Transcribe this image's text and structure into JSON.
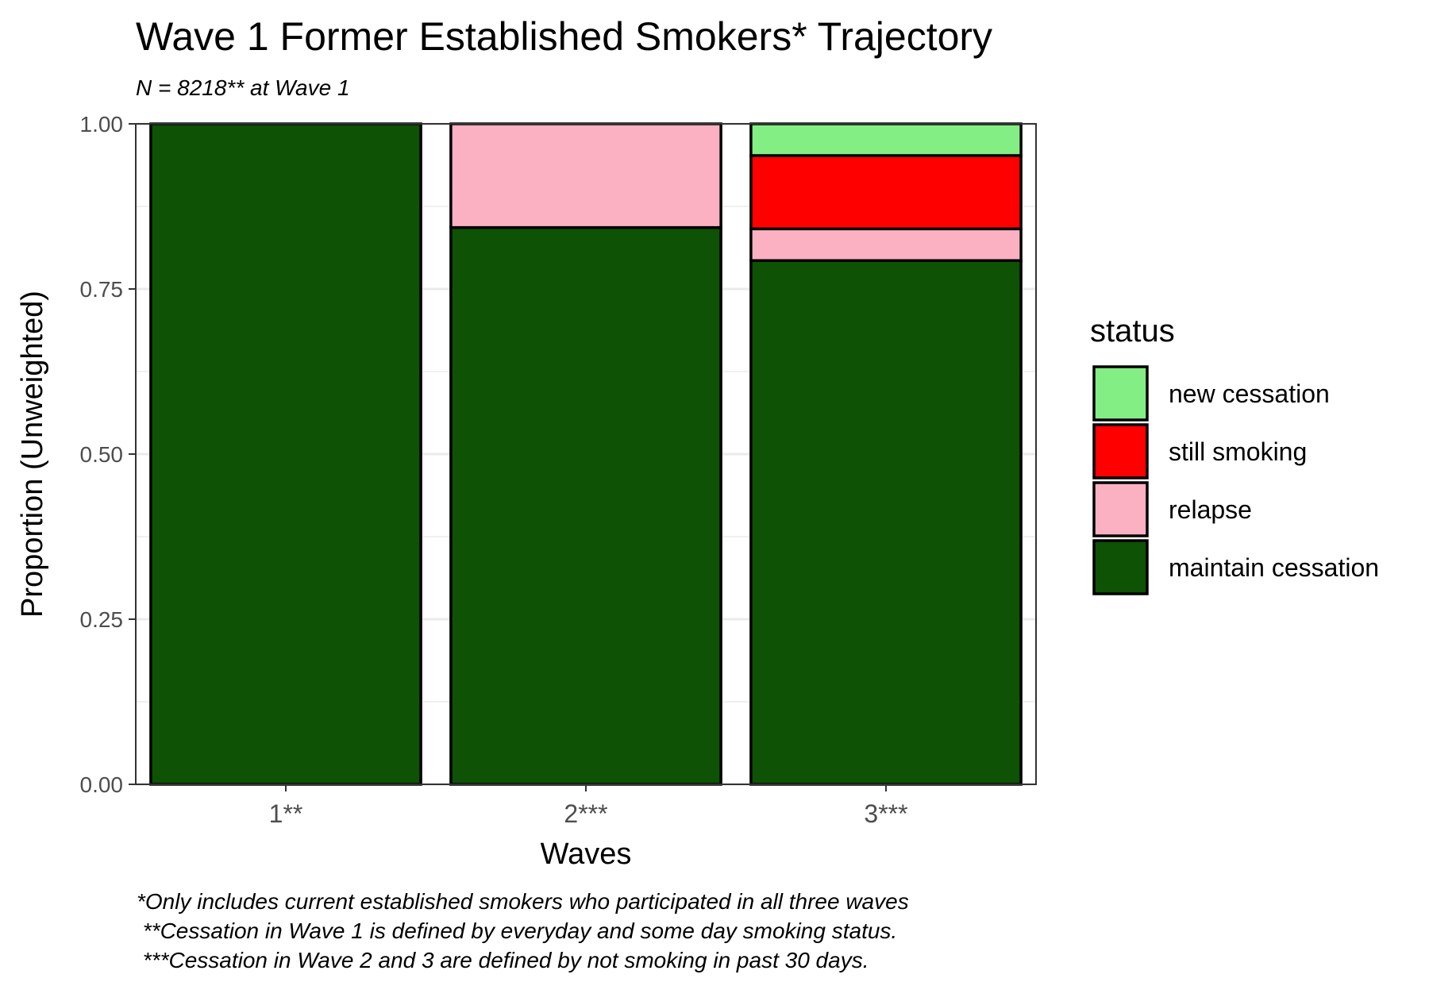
{
  "chart_data": {
    "type": "bar",
    "stacked": true,
    "title": "Wave 1 Former Established Smokers* Trajectory",
    "subtitle": "N = 8218** at Wave 1",
    "xlabel": "Waves",
    "ylabel": "Proportion (Unweighted)",
    "ylim": [
      0,
      1
    ],
    "yticks": [
      "0.00",
      "0.25",
      "0.50",
      "0.75",
      "1.00"
    ],
    "categories": [
      "1**",
      "2***",
      "3***"
    ],
    "legend_title": "status",
    "legend_position": "right",
    "grid": true,
    "series": [
      {
        "name": "maintain cessation",
        "color": "#0d5205",
        "values": [
          1.0,
          0.843,
          0.793
        ]
      },
      {
        "name": "relapse",
        "color": "#fcb1c3",
        "values": [
          0.0,
          0.157,
          0.048
        ]
      },
      {
        "name": "still smoking",
        "color": "#ff0000",
        "values": [
          0.0,
          0.0,
          0.111
        ]
      },
      {
        "name": "new cessation",
        "color": "#83ee83",
        "values": [
          0.0,
          0.0,
          0.048
        ]
      }
    ],
    "legend_order": [
      "new cessation",
      "still smoking",
      "relapse",
      "maintain cessation"
    ],
    "caption": [
      "*Only includes current established smokers who participated in all three waves",
      " **Cessation in Wave 1 is defined by everyday and some day smoking status.",
      " ***Cessation in Wave 2 and 3 are defined by not smoking in past 30 days."
    ]
  }
}
